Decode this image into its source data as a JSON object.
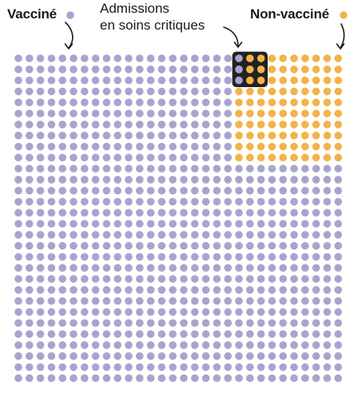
{
  "chart_data": {
    "type": "waffle",
    "grid": {
      "columns": 30,
      "rows": 30
    },
    "series": [
      {
        "name": "Vacciné",
        "color": "#a9a4cf"
      },
      {
        "name": "Non-vacciné",
        "color": "#f4b24a"
      }
    ],
    "non_vaccinated_block": {
      "first_column": 20,
      "columns": 10,
      "rows": 10
    },
    "highlight": {
      "label_lines": [
        "Admissions",
        "en soins critiques"
      ],
      "vaccinated_count": 3,
      "non_vaccinated_count": 6,
      "frame_color": "#222222"
    }
  },
  "colors": {
    "text": "#1a1a1a",
    "background": "#ffffff"
  }
}
